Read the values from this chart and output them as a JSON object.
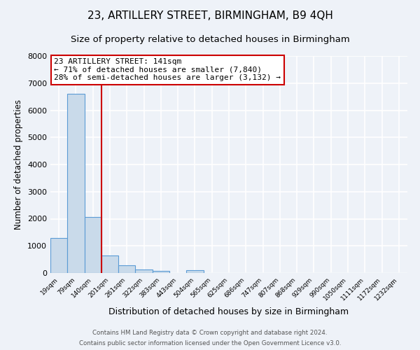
{
  "title": "23, ARTILLERY STREET, BIRMINGHAM, B9 4QH",
  "subtitle": "Size of property relative to detached houses in Birmingham",
  "xlabel": "Distribution of detached houses by size in Birmingham",
  "ylabel": "Number of detached properties",
  "bin_labels": [
    "19sqm",
    "79sqm",
    "140sqm",
    "201sqm",
    "261sqm",
    "322sqm",
    "383sqm",
    "443sqm",
    "504sqm",
    "565sqm",
    "625sqm",
    "686sqm",
    "747sqm",
    "807sqm",
    "868sqm",
    "929sqm",
    "990sqm",
    "1050sqm",
    "1111sqm",
    "1172sqm",
    "1232sqm"
  ],
  "bin_values": [
    1300,
    6600,
    2070,
    650,
    290,
    130,
    65,
    0,
    100,
    0,
    0,
    0,
    0,
    0,
    0,
    0,
    0,
    0,
    0,
    0,
    0
  ],
  "bar_color": "#c9daea",
  "bar_edge_color": "#5b9bd5",
  "property_line_color": "#cc0000",
  "property_line_x": 2.5,
  "ylim": [
    0,
    8000
  ],
  "yticks": [
    0,
    1000,
    2000,
    3000,
    4000,
    5000,
    6000,
    7000,
    8000
  ],
  "annotation_line1": "23 ARTILLERY STREET: 141sqm",
  "annotation_line2": "← 71% of detached houses are smaller (7,840)",
  "annotation_line3": "28% of semi-detached houses are larger (3,132) →",
  "annotation_box_color": "#ffffff",
  "annotation_box_edge_color": "#cc0000",
  "footer_line1": "Contains HM Land Registry data © Crown copyright and database right 2024.",
  "footer_line2": "Contains public sector information licensed under the Open Government Licence v3.0.",
  "background_color": "#eef2f8",
  "grid_color": "#ffffff",
  "title_fontsize": 11,
  "subtitle_fontsize": 9.5,
  "ylabel_fontsize": 8.5,
  "xlabel_fontsize": 9
}
